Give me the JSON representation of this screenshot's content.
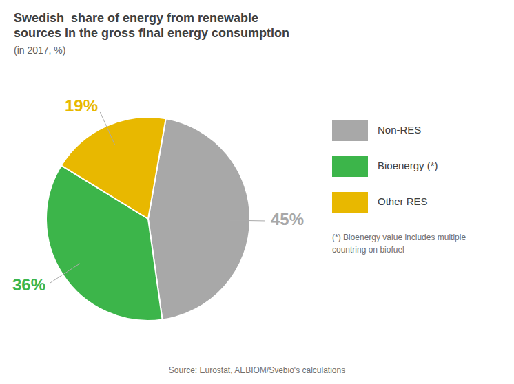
{
  "chart_data": {
    "type": "pie",
    "title": "Swedish  share of energy from renewable\nsources in the gross final energy consumption",
    "subtitle": "(in 2017, %)",
    "categories": [
      "Non-RES",
      "Bioenergy (*)",
      "Other RES"
    ],
    "values": [
      45,
      36,
      19
    ],
    "value_labels": [
      "45%",
      "36%",
      "19%"
    ],
    "colors": [
      "#a8a8a8",
      "#3cb54a",
      "#e8b800"
    ],
    "data_labels": true,
    "legend": "right",
    "annotations": [
      "(*) Bioenergy value includes multiple\ncountring on biofuel",
      "Source: Eurostat, AEBIOM/Svebio's calculations"
    ]
  }
}
